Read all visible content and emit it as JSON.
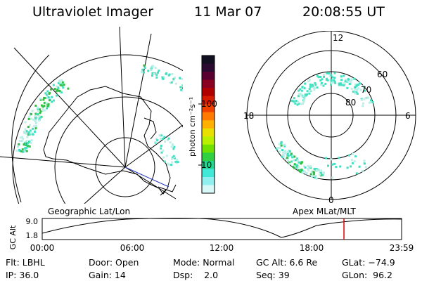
{
  "header": {
    "instrument": "Ultraviolet Imager",
    "date": "11 Mar 07",
    "time": "20:08:55 UT"
  },
  "colorbar": {
    "unit": "photon cm⁻²s⁻¹",
    "ticks": [
      "100",
      "10"
    ],
    "colors": [
      "#101020",
      "#2a0a30",
      "#5a0030",
      "#8a0020",
      "#b00000",
      "#d61a00",
      "#f04000",
      "#ff7a00",
      "#ffb000",
      "#e8e000",
      "#b8f000",
      "#70e000",
      "#30d040",
      "#20d890",
      "#40e8d8",
      "#90f0f0",
      "#d8f8f8"
    ]
  },
  "geo_map": {
    "label": "Geographic Lat/Lon",
    "auroral_color": "#40e0c0",
    "auroral_dense_color": "#30c040"
  },
  "polar_plot": {
    "label": "Apex MLat/MLT",
    "mlt_labels": {
      "top": "12",
      "bottom": "0",
      "left": "18",
      "right": "6"
    },
    "lat_labels": [
      "60",
      "70",
      "80"
    ]
  },
  "altitude_plot": {
    "ylabel": "GC Alt",
    "yticks": [
      "9.0",
      "1.8"
    ],
    "xticks": [
      "00:00",
      "06:00",
      "12:00",
      "18:00",
      "23:59"
    ],
    "marker_color": "#e00000",
    "marker_time_hours": 20.15
  },
  "status": {
    "filter": "Flt: LBHL",
    "ip": "IP: 36.0",
    "door": "Door: Open",
    "gain": "Gain: 14",
    "mode": "Mode: Normal",
    "dsp": "Dsp:    2.0",
    "gc_alt": "GC Alt: 6.6 Re",
    "seq": "Seq: 39",
    "glat": "GLat: −74.9",
    "glon": "GLon:  96.2"
  }
}
